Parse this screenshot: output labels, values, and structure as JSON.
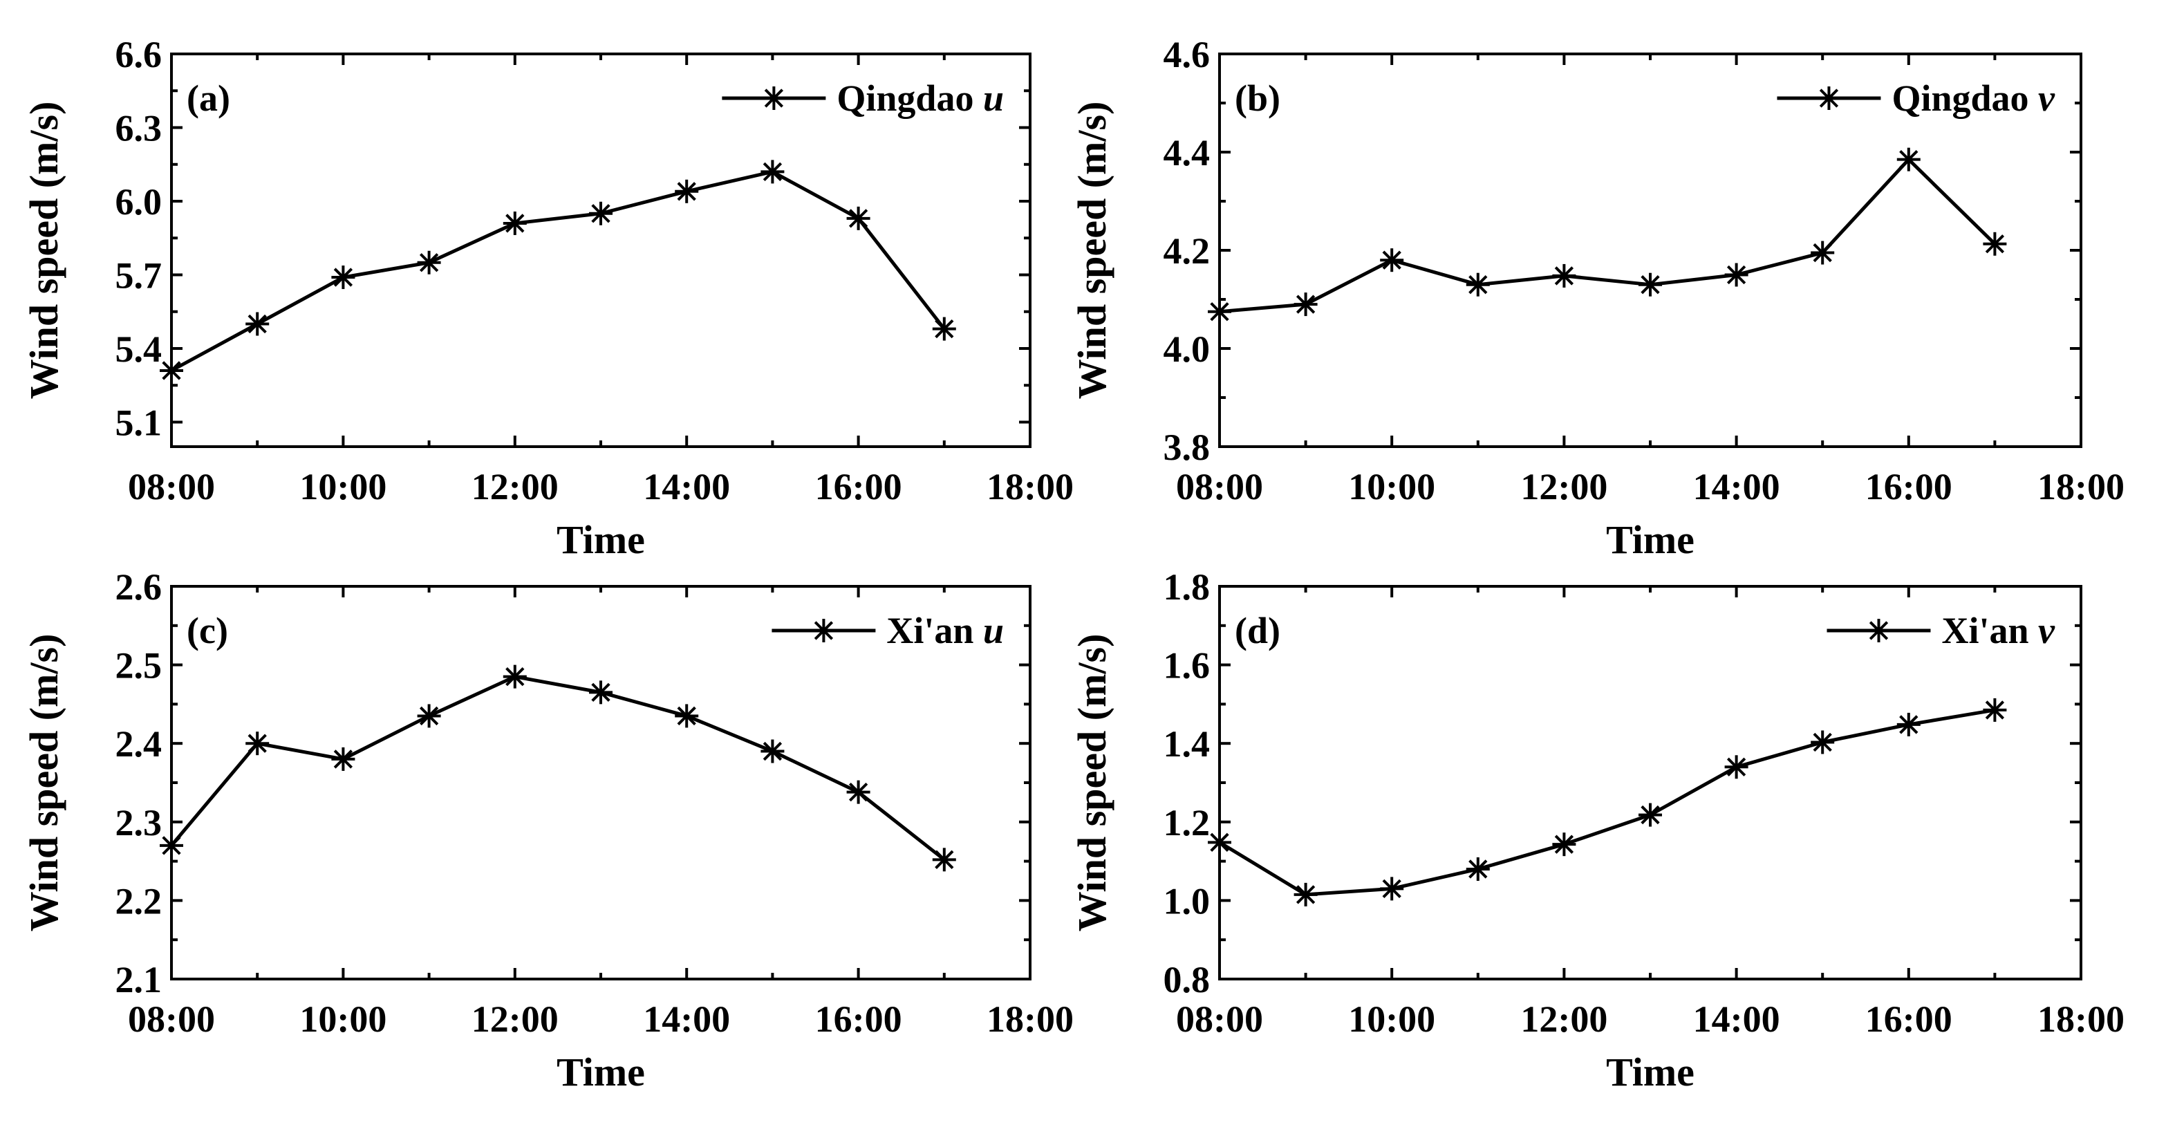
{
  "chart_data": [
    {
      "type": "line",
      "panel_label": "(a)",
      "legend": {
        "name": "Qingdao",
        "component": "u"
      },
      "xlabel": "Time",
      "ylabel": "Wind speed (m/s)",
      "xticks": [
        "08:00",
        "10:00",
        "12:00",
        "14:00",
        "16:00",
        "18:00"
      ],
      "xlim": [
        8,
        18
      ],
      "yticks": [
        "5.1",
        "5.4",
        "5.7",
        "6.0",
        "6.3",
        "6.6"
      ],
      "ylim": [
        5.0,
        6.6
      ],
      "series": [
        {
          "name": "Qingdao u",
          "x": [
            8,
            9,
            10,
            11,
            12,
            13,
            14,
            15,
            16,
            17
          ],
          "values": [
            5.31,
            5.5,
            5.69,
            5.75,
            5.91,
            5.95,
            6.04,
            6.12,
            5.93,
            5.48
          ]
        }
      ]
    },
    {
      "type": "line",
      "panel_label": "(b)",
      "legend": {
        "name": "Qingdao",
        "component": "v"
      },
      "xlabel": "Time",
      "ylabel": "Wind speed (m/s)",
      "xticks": [
        "08:00",
        "10:00",
        "12:00",
        "14:00",
        "16:00",
        "18:00"
      ],
      "xlim": [
        8,
        18
      ],
      "yticks": [
        "3.8",
        "4.0",
        "4.2",
        "4.4",
        "4.6"
      ],
      "ylim": [
        3.8,
        4.6
      ],
      "series": [
        {
          "name": "Qingdao v",
          "x": [
            8,
            9,
            10,
            11,
            12,
            13,
            14,
            15,
            16,
            17
          ],
          "values": [
            4.075,
            4.09,
            4.18,
            4.13,
            4.148,
            4.13,
            4.15,
            4.195,
            4.385,
            4.213
          ]
        }
      ]
    },
    {
      "type": "line",
      "panel_label": "(c)",
      "legend": {
        "name": "Xi'an",
        "component": "u"
      },
      "xlabel": "Time",
      "ylabel": "Wind speed (m/s)",
      "xticks": [
        "08:00",
        "10:00",
        "12:00",
        "14:00",
        "16:00",
        "18:00"
      ],
      "xlim": [
        8,
        18
      ],
      "yticks": [
        "2.1",
        "2.2",
        "2.3",
        "2.4",
        "2.5",
        "2.6"
      ],
      "ylim": [
        2.1,
        2.6
      ],
      "series": [
        {
          "name": "Xi'an u",
          "x": [
            8,
            9,
            10,
            11,
            12,
            13,
            14,
            15,
            16,
            17
          ],
          "values": [
            2.27,
            2.4,
            2.38,
            2.435,
            2.485,
            2.465,
            2.435,
            2.39,
            2.338,
            2.252
          ]
        }
      ]
    },
    {
      "type": "line",
      "panel_label": "(d)",
      "legend": {
        "name": "Xi'an",
        "component": "v"
      },
      "xlabel": "Time",
      "ylabel": "Wind speed (m/s)",
      "xticks": [
        "08:00",
        "10:00",
        "12:00",
        "14:00",
        "16:00",
        "18:00"
      ],
      "xlim": [
        8,
        18
      ],
      "yticks": [
        "0.8",
        "1.0",
        "1.2",
        "1.4",
        "1.6",
        "1.8"
      ],
      "ylim": [
        0.8,
        1.8
      ],
      "series": [
        {
          "name": "Xi'an v",
          "x": [
            8,
            9,
            10,
            11,
            12,
            13,
            14,
            15,
            16,
            17
          ],
          "values": [
            1.148,
            1.015,
            1.03,
            1.08,
            1.143,
            1.218,
            1.34,
            1.403,
            1.448,
            1.485
          ]
        }
      ]
    }
  ]
}
